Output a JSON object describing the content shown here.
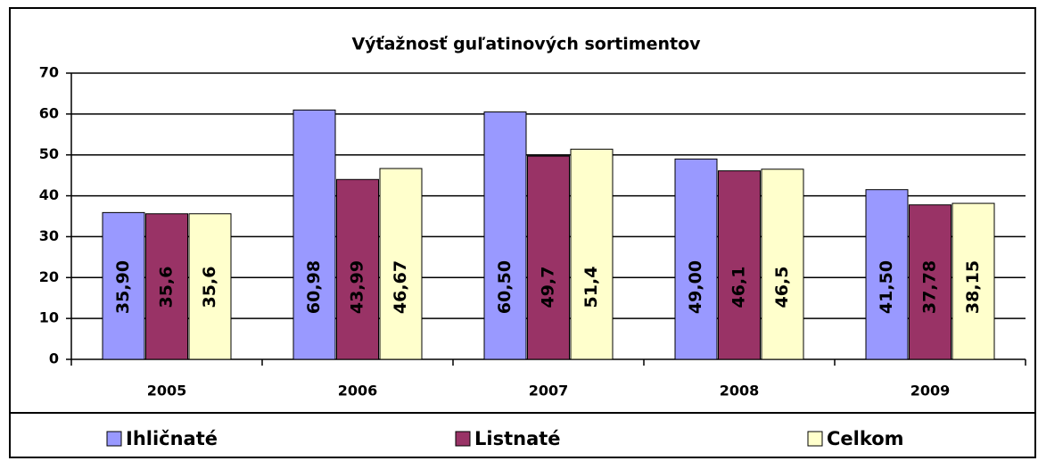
{
  "chart_data": {
    "type": "bar",
    "title": "Výťažnosť guľatinových sortimentov",
    "categories": [
      "2005",
      "2006",
      "2007",
      "2008",
      "2009"
    ],
    "series": [
      {
        "name": "Ihličnaté",
        "color": "#9999ff",
        "values": [
          35.9,
          60.98,
          60.5,
          49.0,
          41.5
        ],
        "value_labels": [
          "35,90",
          "60,98",
          "60,50",
          "49,00",
          "41,50"
        ]
      },
      {
        "name": "Listnaté",
        "color": "#993366",
        "values": [
          35.6,
          43.99,
          49.7,
          46.1,
          37.78
        ],
        "value_labels": [
          "35,6",
          "43,99",
          "49,7",
          "46,1",
          "37,78"
        ]
      },
      {
        "name": "Celkom",
        "color": "#ffffcc",
        "values": [
          35.6,
          46.67,
          51.4,
          46.5,
          38.15
        ],
        "value_labels": [
          "35,6",
          "46,67",
          "51,4",
          "46,5",
          "38,15"
        ]
      }
    ],
    "ylim": [
      0,
      70
    ],
    "yticks": [
      0,
      10,
      20,
      30,
      40,
      50,
      60,
      70
    ],
    "grid": true,
    "legend": "bottom"
  }
}
